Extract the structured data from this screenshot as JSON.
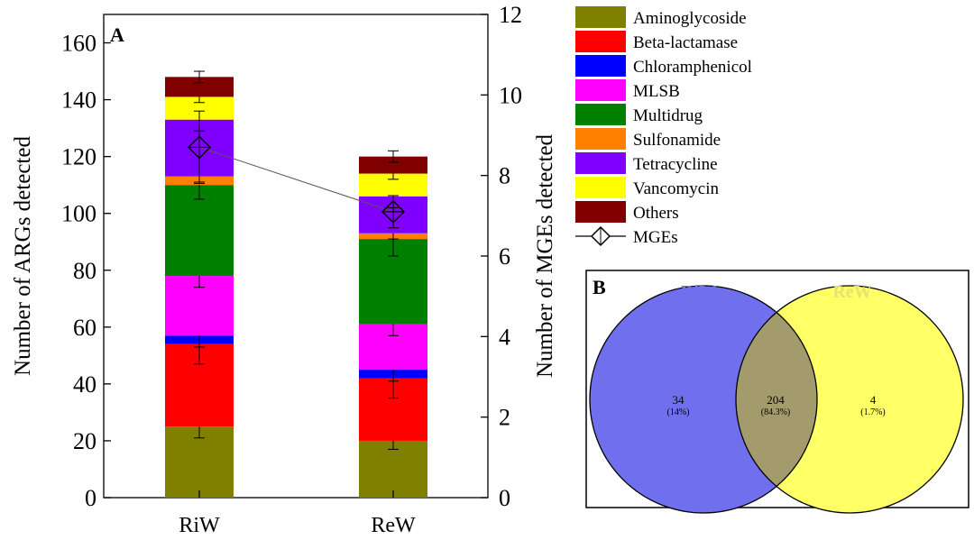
{
  "chart_data": [
    {
      "panel": "A",
      "type": "bar",
      "stacked": true,
      "categories": [
        "RiW",
        "ReW"
      ],
      "ylabel": "Number of ARGs detected",
      "ylim": [
        0,
        170
      ],
      "yticks": [
        0,
        20,
        40,
        60,
        80,
        100,
        120,
        140,
        160
      ],
      "y2label": "Number of MGEs detected",
      "y2lim": [
        0,
        12
      ],
      "y2ticks": [
        0,
        2,
        4,
        6,
        8,
        10,
        12
      ],
      "series": [
        {
          "name": "Aminoglycoside",
          "color": "#808000",
          "values": [
            25,
            20
          ],
          "errors": [
            4,
            3
          ]
        },
        {
          "name": "Beta-lactamase",
          "color": "#ff0000",
          "values": [
            29,
            22
          ],
          "errors": [
            7,
            7
          ]
        },
        {
          "name": "Chloramphenicol",
          "color": "#0000ff",
          "values": [
            3,
            3
          ],
          "errors": [
            4,
            4
          ]
        },
        {
          "name": "MLSB",
          "color": "#ff00ff",
          "values": [
            21,
            16
          ],
          "errors": [
            4,
            4
          ]
        },
        {
          "name": "Multidrug",
          "color": "#008000",
          "values": [
            32,
            30
          ],
          "errors": [
            5,
            6
          ]
        },
        {
          "name": "Sulfonamide",
          "color": "#ff8000",
          "values": [
            3,
            2
          ],
          "errors": [
            2,
            2
          ]
        },
        {
          "name": "Tetracycline",
          "color": "#8000ff",
          "values": [
            20,
            13
          ],
          "errors": [
            4,
            4
          ]
        },
        {
          "name": "Vancomycin",
          "color": "#ffff00",
          "values": [
            8,
            8
          ],
          "errors": [
            2,
            2
          ]
        },
        {
          "name": "Others",
          "color": "#800000",
          "values": [
            7,
            6
          ],
          "errors": [
            2,
            2
          ]
        }
      ],
      "mges": {
        "name": "MGEs",
        "axis": "right",
        "values": [
          8.7,
          7.1
        ],
        "errors": [
          0.9,
          0.4
        ]
      },
      "legend": "right"
    },
    {
      "panel": "B",
      "type": "venn",
      "sets": [
        {
          "name": "RiW",
          "color": "#7070ee"
        },
        {
          "name": "ReW",
          "color": "#ffff66"
        }
      ],
      "regions": [
        {
          "label": "RiW only",
          "count": "34",
          "percent": "(14%)"
        },
        {
          "label": "shared",
          "count": "204",
          "percent": "(84.3%)"
        },
        {
          "label": "ReW only",
          "count": "4",
          "percent": "(1.7%)"
        }
      ]
    }
  ]
}
